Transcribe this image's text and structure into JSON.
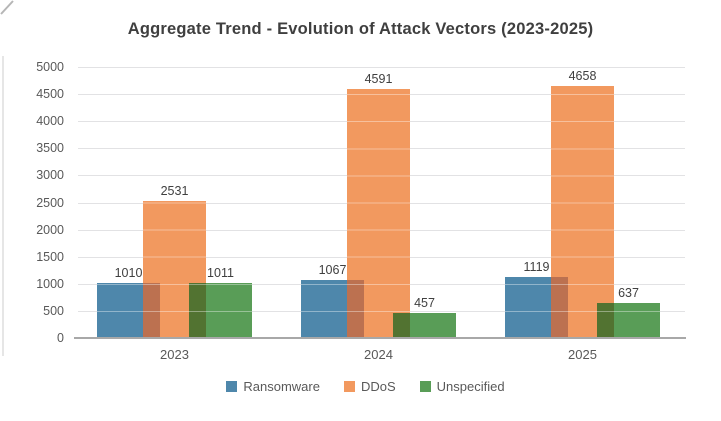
{
  "title": "Aggregate Trend - Evolution of Attack Vectors (2023-2025)",
  "chart_data": {
    "type": "bar",
    "title": "Aggregate Trend - Evolution of Attack Vectors (2023-2025)",
    "categories": [
      "2023",
      "2024",
      "2025"
    ],
    "series": [
      {
        "name": "Ransomware",
        "color": "#4E87AB",
        "values": [
          1010,
          1067,
          1119
        ]
      },
      {
        "name": "DDoS",
        "color": "#F2995F",
        "values": [
          2531,
          4591,
          4658
        ]
      },
      {
        "name": "Unspecified",
        "color": "#599D57",
        "values": [
          1011,
          457,
          637
        ]
      }
    ],
    "overlap_colors": [
      "#BC7150",
      "#527331"
    ],
    "data_labels": [
      [
        "1010",
        "2531",
        "1011"
      ],
      [
        "1067",
        "4591",
        "457"
      ],
      [
        "1119",
        "4658",
        "637"
      ]
    ],
    "xlabel": "",
    "ylabel": "",
    "ylim": [
      0,
      5000
    ],
    "ytick_step": 500,
    "yticks": [
      0,
      500,
      1000,
      1500,
      2000,
      2500,
      3000,
      3500,
      4000,
      4500,
      5000
    ],
    "grid": "horizontal",
    "legend_position": "bottom",
    "bar_style": "overlapped"
  },
  "colors": {
    "title_text": "#3F3F3F",
    "tick_text": "#595959",
    "data_label_text": "#404040",
    "gridline": "#E2E2E4",
    "axis_line": "#A8A8A8",
    "background": "#FFFFFF"
  }
}
